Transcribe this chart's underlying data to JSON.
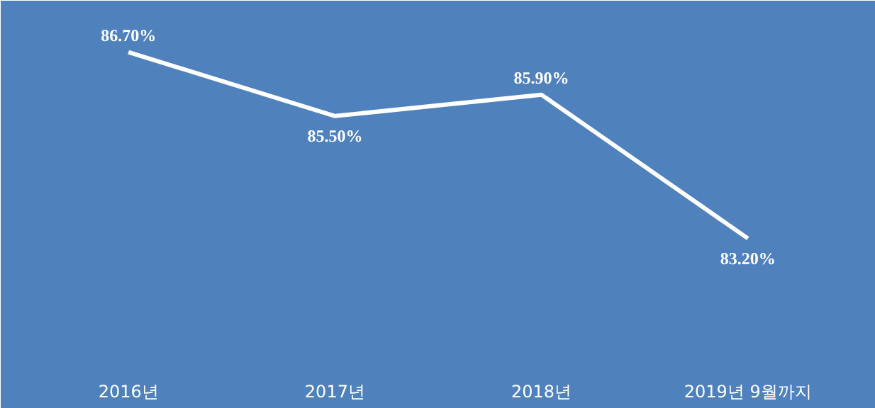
{
  "chart_data": {
    "type": "line",
    "categories": [
      "2016년",
      "2017년",
      "2018년",
      "2019년 9월까지"
    ],
    "values": [
      86.7,
      85.5,
      85.9,
      83.2
    ],
    "value_labels": [
      "86.70%",
      "85.50%",
      "85.90%",
      "83.20%"
    ],
    "color": "#ffffff",
    "ylim": [
      80.8,
      87.4
    ],
    "grid": false,
    "line_style": "solid",
    "tick_labels": "x"
  }
}
